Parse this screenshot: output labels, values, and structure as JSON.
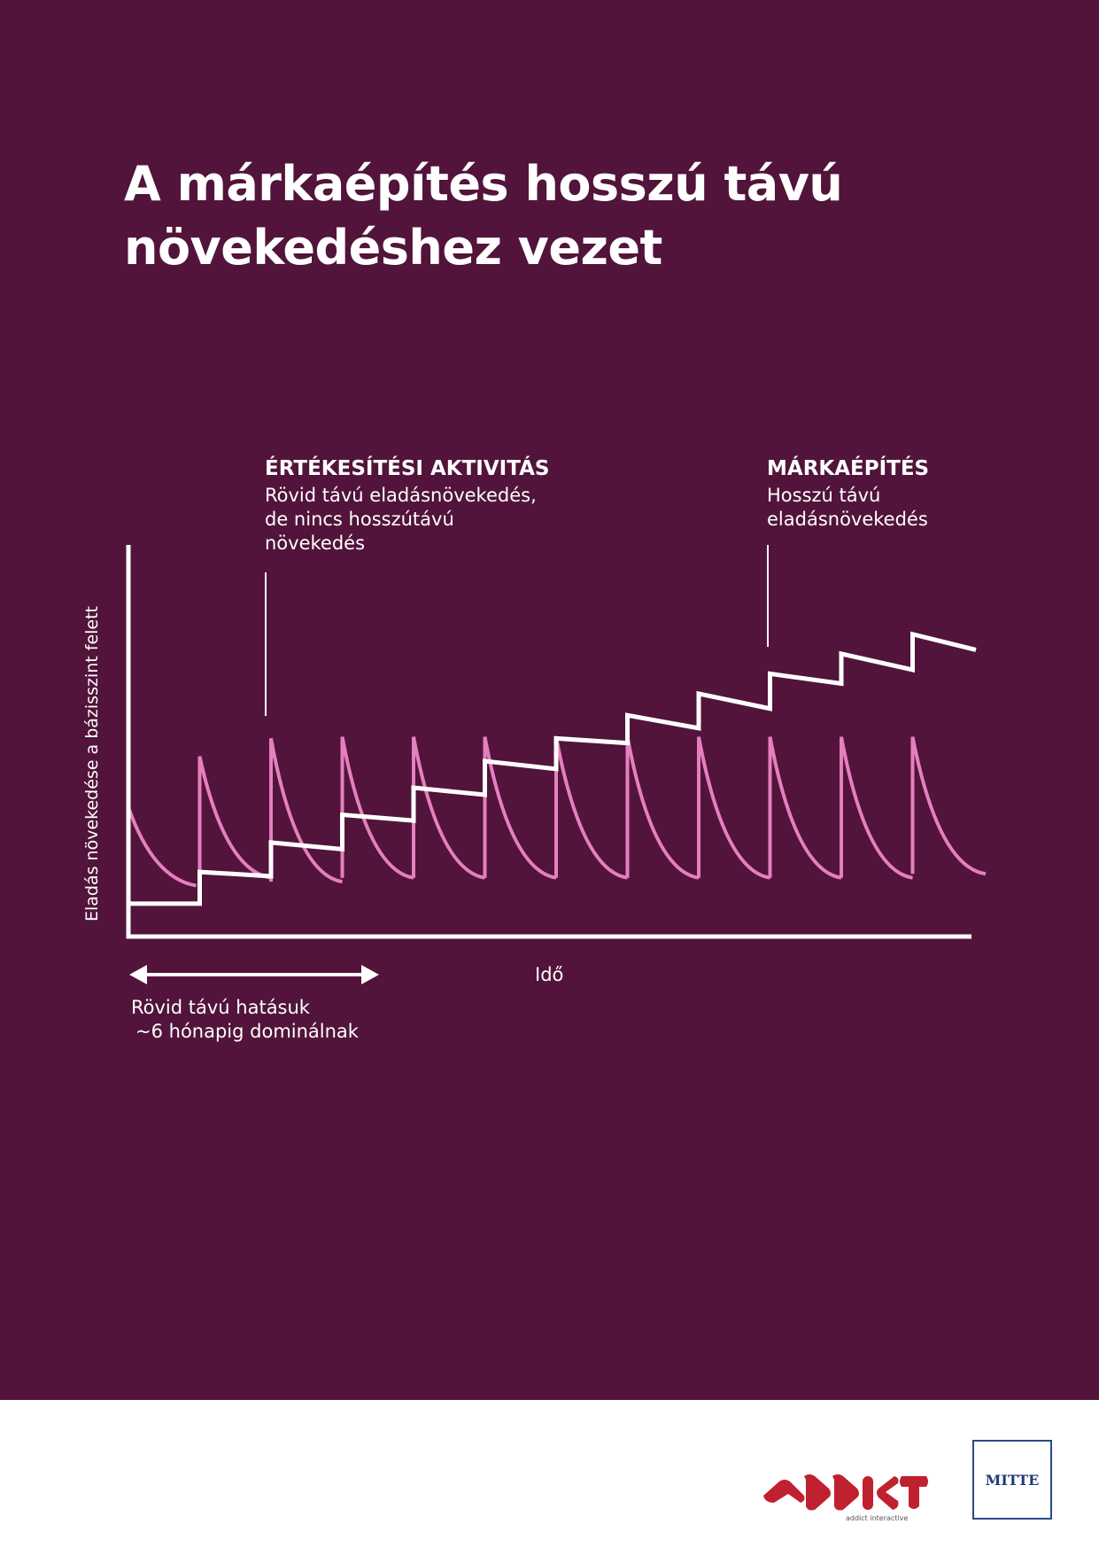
{
  "title": {
    "line1": "A márkaépítés hosszú távú",
    "line2": "növekedéshez vezet"
  },
  "annotations": {
    "sales": {
      "heading": "ÉRTÉKESÍTÉSI AKTIVITÁS",
      "lines": [
        "Rövid távú eladásnövekedés,",
        "de nincs hosszútávú",
        "növekedés"
      ]
    },
    "brand": {
      "heading": "MÁRKAÉPÍTÉS",
      "lines": [
        "Hosszú távú",
        "eladásnövekedés"
      ]
    },
    "short_term": {
      "lines": [
        "Rövid távú hatásuk",
        "~6 hónapig dominálnak"
      ]
    }
  },
  "chart_data": {
    "type": "line",
    "title": "A márkaépítés hosszú távú növekedéshez vezet",
    "xlabel": "Idő",
    "ylabel": "Eladás növekedése a bázisszint felett",
    "xlim": [
      0,
      12
    ],
    "ylim": [
      0,
      100
    ],
    "grid": false,
    "series": [
      {
        "name": "Márkaépítés",
        "color": "#ffffff",
        "kind": "step",
        "segments": [
          [
            0,
            8.4,
            8.4
          ],
          [
            1,
            16.5,
            15.4
          ],
          [
            2,
            24,
            22.3
          ],
          [
            3,
            31.1,
            29.6
          ],
          [
            4,
            38,
            36.2
          ],
          [
            5,
            44.8,
            42.8
          ],
          [
            6,
            50.6,
            49.4
          ],
          [
            7,
            56.5,
            53.2
          ],
          [
            8,
            62,
            58.2
          ],
          [
            9,
            67.1,
            64.6
          ],
          [
            10,
            72.2,
            68.1
          ],
          [
            11,
            77.2,
            73.2
          ]
        ]
      },
      {
        "name": "Értékesítési aktivitás",
        "color": "#e57fbf",
        "kind": "decay",
        "segments": [
          [
            0,
            33,
            13
          ],
          [
            1,
            46,
            15
          ],
          [
            2,
            50.6,
            14
          ],
          [
            3,
            51,
            15
          ],
          [
            4,
            51,
            15
          ],
          [
            5,
            51,
            15
          ],
          [
            6,
            51,
            15
          ],
          [
            7,
            51,
            15
          ],
          [
            8,
            51,
            15
          ],
          [
            9,
            51,
            15
          ],
          [
            10,
            51,
            15
          ],
          [
            11,
            51,
            16
          ]
        ]
      }
    ]
  },
  "logos": {
    "addict": "ADDICT",
    "addict_sub": "addict interactive",
    "mitte": "MITTE"
  },
  "colors": {
    "background": "#52143a",
    "pink": "#e57fbf",
    "white": "#ffffff"
  }
}
